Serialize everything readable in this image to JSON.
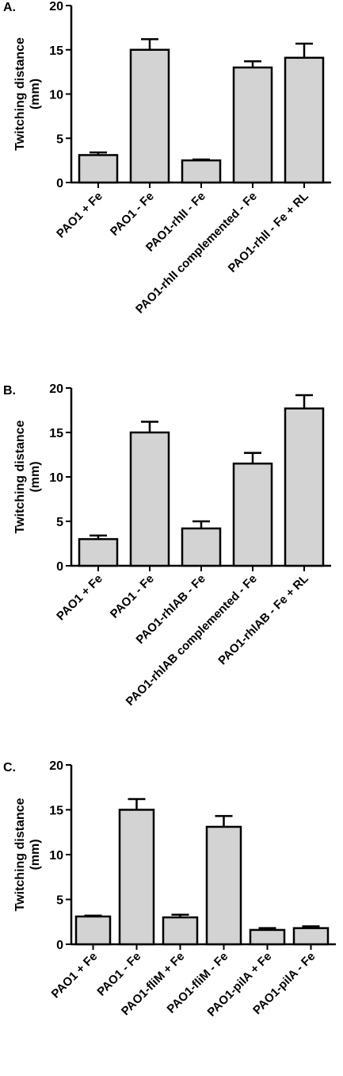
{
  "chart_data": [
    {
      "type": "bar",
      "panel_label": "A.",
      "ylabel": "Twitching distance\n(mm)",
      "ylim": [
        0,
        20
      ],
      "yticks": [
        0,
        5,
        10,
        15,
        20
      ],
      "categories": [
        "PAO1 + Fe",
        "PAO1 - Fe",
        "PAO1-rhlI - Fe",
        "PAO1-rhlI complemented - Fe",
        "PAO1-rhlI - Fe + RL"
      ],
      "values": [
        3.1,
        15.0,
        2.5,
        13.0,
        14.1
      ],
      "errors": [
        0.3,
        1.2,
        0.1,
        0.7,
        1.6
      ],
      "bar_color": "#d3d3d3",
      "grid": false
    },
    {
      "type": "bar",
      "panel_label": "B.",
      "ylabel": "Twitching distance\n(mm)",
      "ylim": [
        0,
        20
      ],
      "yticks": [
        0,
        5,
        10,
        15,
        20
      ],
      "categories": [
        "PAO1 + Fe",
        "PAO1 - Fe",
        "PAO1-rhlAB - Fe",
        "PAO1-rhlAB complemented - Fe",
        "PAO1-rhlAB - Fe + RL"
      ],
      "values": [
        3.0,
        15.0,
        4.2,
        11.5,
        17.7
      ],
      "errors": [
        0.4,
        1.2,
        0.8,
        1.2,
        1.5
      ],
      "bar_color": "#d3d3d3",
      "grid": false
    },
    {
      "type": "bar",
      "panel_label": "C.",
      "ylabel": "Twitching distance\n(mm)",
      "ylim": [
        0,
        20
      ],
      "yticks": [
        0,
        5,
        10,
        15,
        20
      ],
      "categories": [
        "PAO1 + Fe",
        "PAO1 - Fe",
        "PAO1-fliM + Fe",
        "PAO1-fliM - Fe",
        "PAO1-pilA + Fe",
        "PAO1-pilA - Fe"
      ],
      "values": [
        3.1,
        15.0,
        3.0,
        13.1,
        1.6,
        1.8
      ],
      "errors": [
        0.1,
        1.2,
        0.3,
        1.2,
        0.2,
        0.2
      ],
      "bar_color": "#d3d3d3",
      "grid": false
    }
  ]
}
